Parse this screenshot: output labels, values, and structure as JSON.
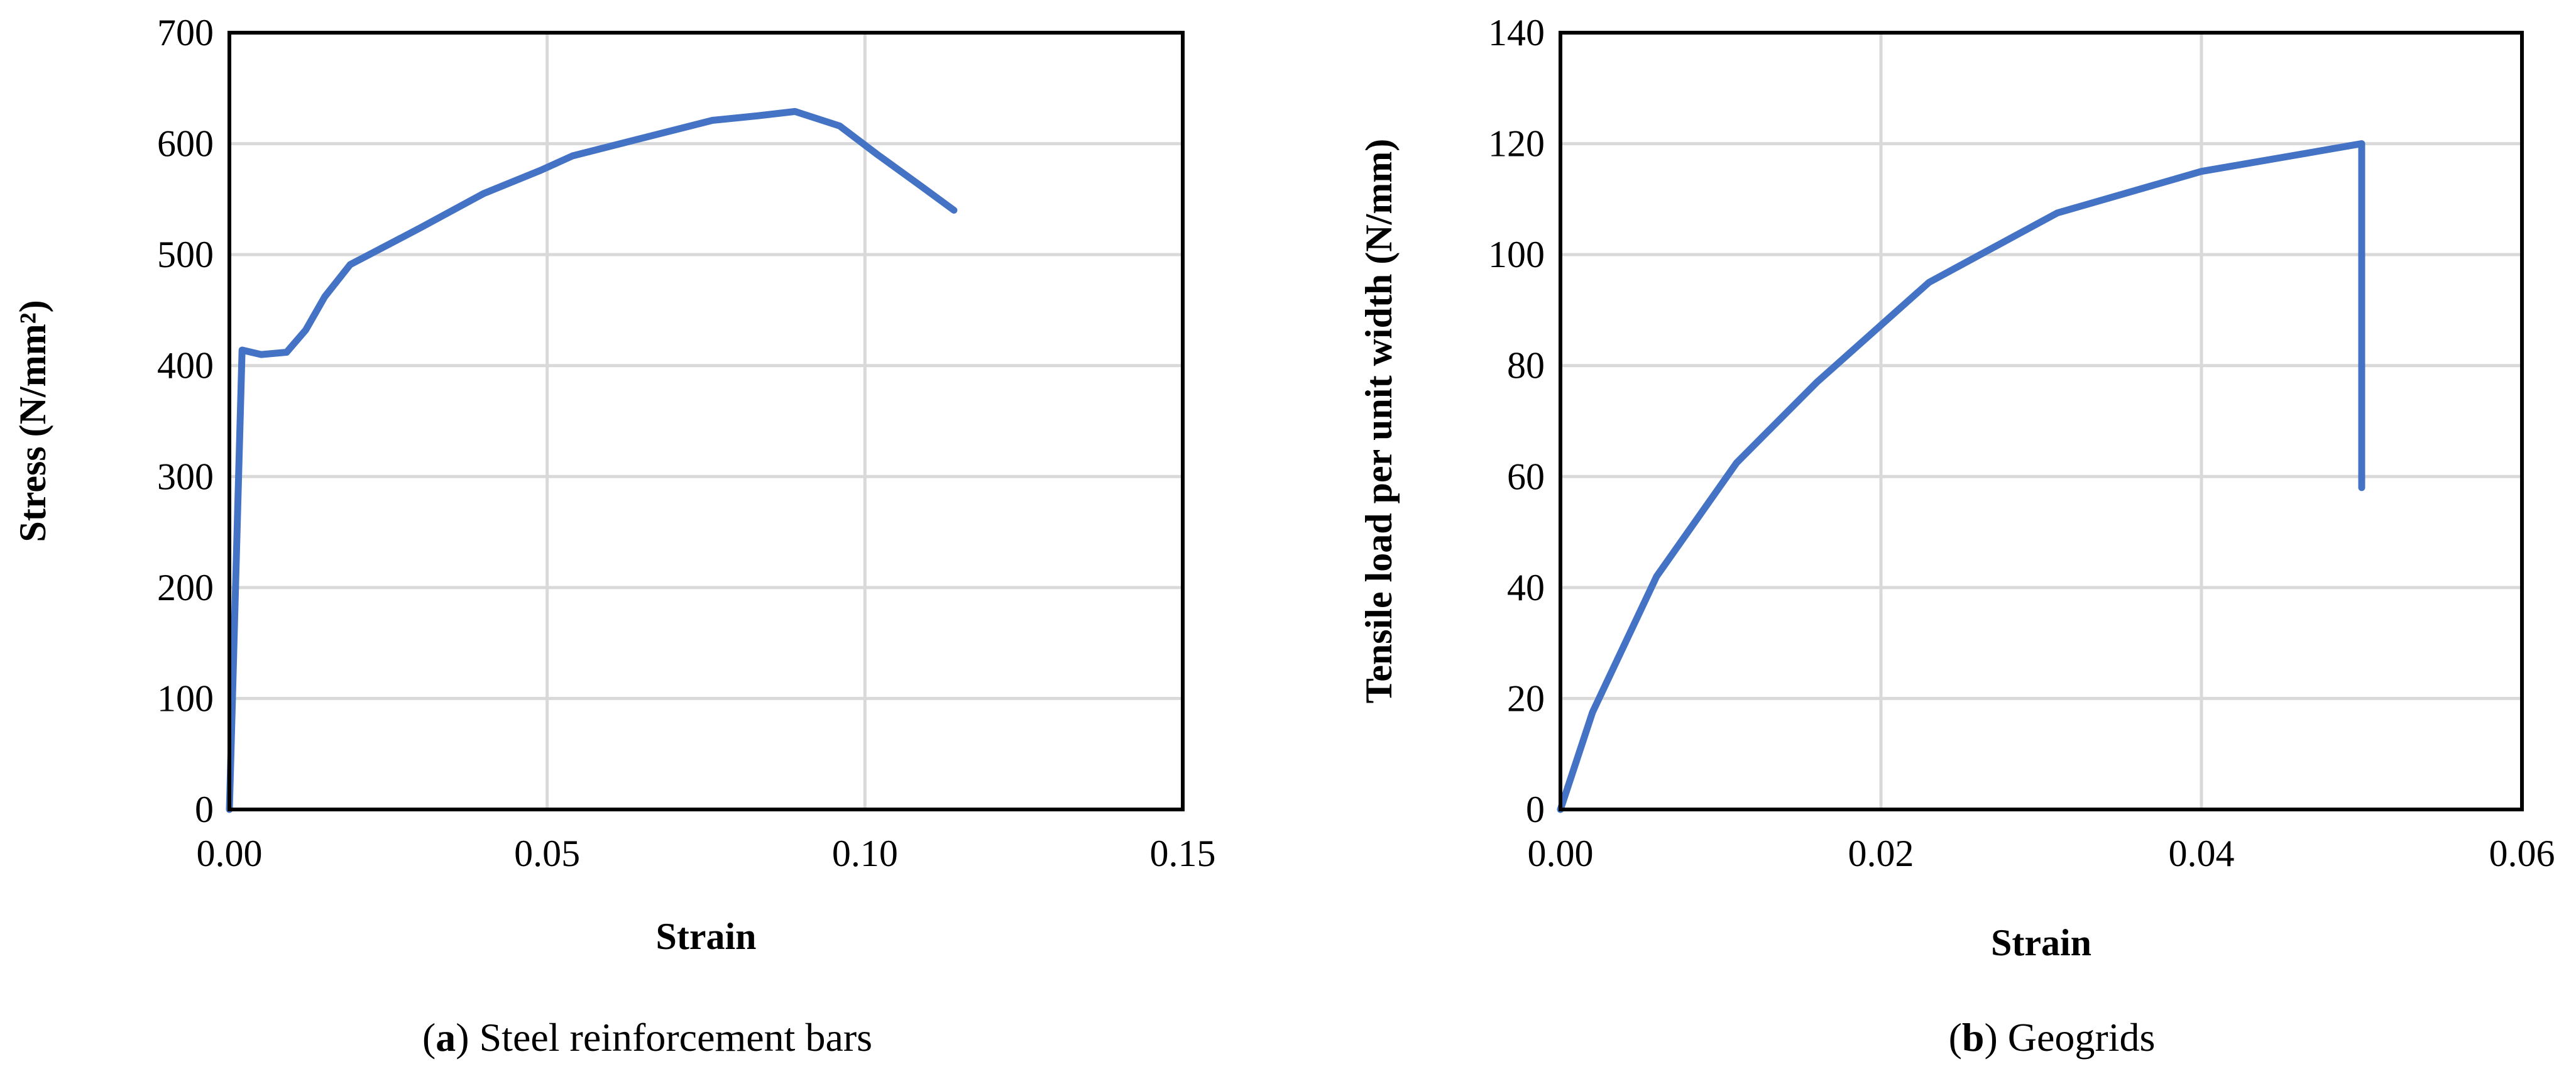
{
  "chart_data": [
    {
      "type": "line",
      "panel_letter": "a",
      "caption": "Steel reinforcement bars",
      "xlabel": "Strain",
      "ylabel": "Stress (N/mm²)",
      "xlim": [
        0,
        0.15
      ],
      "ylim": [
        0,
        700
      ],
      "x_ticks": [
        "0.00",
        "0.05",
        "0.10",
        "0.15"
      ],
      "y_ticks": [
        "0",
        "100",
        "200",
        "300",
        "400",
        "500",
        "600",
        "700"
      ],
      "grid": true,
      "series_color": "#4472c4",
      "series": [
        {
          "x": [
            0,
            0.002,
            0.005,
            0.009,
            0.012,
            0.015,
            0.019,
            0.03,
            0.04,
            0.049,
            0.054,
            0.065,
            0.076,
            0.083,
            0.089,
            0.096,
            0.102,
            0.109,
            0.114
          ],
          "y": [
            0,
            414,
            410,
            412,
            432,
            462,
            491,
            524,
            555,
            576,
            589,
            605,
            621,
            625,
            629,
            616,
            590,
            561,
            540
          ]
        }
      ]
    },
    {
      "type": "line",
      "panel_letter": "b",
      "caption": "Geogrids",
      "xlabel": "Strain",
      "ylabel": "Tensile load per unit width (N/mm)",
      "xlim": [
        0,
        0.06
      ],
      "ylim": [
        0,
        140
      ],
      "x_ticks": [
        "0.00",
        "0.02",
        "0.04",
        "0.06"
      ],
      "y_ticks": [
        "0",
        "20",
        "40",
        "60",
        "80",
        "100",
        "120",
        "140"
      ],
      "grid": true,
      "series_color": "#4472c4",
      "series": [
        {
          "x": [
            0,
            0.002,
            0.006,
            0.011,
            0.016,
            0.023,
            0.031,
            0.04,
            0.05,
            0.05
          ],
          "y": [
            0,
            17.5,
            42,
            62.5,
            77,
            95,
            107.5,
            115,
            120,
            58
          ]
        }
      ]
    }
  ]
}
